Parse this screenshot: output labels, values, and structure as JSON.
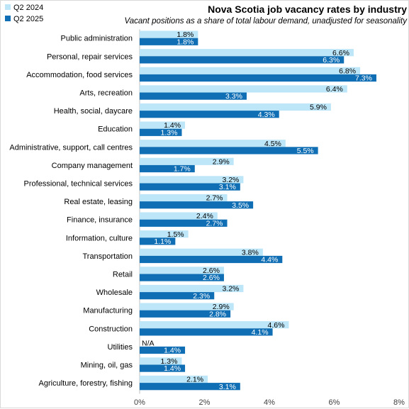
{
  "chart_data": {
    "type": "bar",
    "orientation": "horizontal",
    "title": "Nova Scotia job vacancy rates by industry",
    "subtitle": "Vacant positions as a share of total labour demand, unadjusted for seasonality",
    "xlim": [
      0,
      8
    ],
    "x_ticks": [
      "0%",
      "2%",
      "4%",
      "6%",
      "8%"
    ],
    "legend_position": "top-left",
    "grid": false,
    "categories": [
      "Public administration",
      "Personal, repair services",
      "Accommodation, food services",
      "Arts, recreation",
      "Health, social, daycare",
      "Education",
      "Administrative, support, call centres",
      "Company management",
      "Professional, technical services",
      "Real estate, leasing",
      "Finance, insurance",
      "Information, culture",
      "Transportation",
      "Retail",
      "Wholesale",
      "Manufacturing",
      "Construction",
      "Utilities",
      "Mining, oil, gas",
      "Agriculture, forestry, fishing"
    ],
    "series": [
      {
        "name": "Q2 2024",
        "color": "#bde6f8",
        "label_color": "#000000",
        "values": [
          1.8,
          6.6,
          6.8,
          6.4,
          5.9,
          1.4,
          4.5,
          2.9,
          3.2,
          2.7,
          2.4,
          1.5,
          3.8,
          2.6,
          3.2,
          2.9,
          4.6,
          null,
          1.3,
          2.1
        ],
        "labels": [
          "1.8%",
          "6.6%",
          "6.8%",
          "6.4%",
          "5.9%",
          "1.4%",
          "4.5%",
          "2.9%",
          "3.2%",
          "2.7%",
          "2.4%",
          "1.5%",
          "3.8%",
          "2.6%",
          "3.2%",
          "2.9%",
          "4.6%",
          "N/A",
          "1.3%",
          "2.1%"
        ]
      },
      {
        "name": "Q2 2025",
        "color": "#0f6eb4",
        "label_color": "#ffffff",
        "values": [
          1.8,
          6.3,
          7.3,
          3.3,
          4.3,
          1.3,
          5.5,
          1.7,
          3.1,
          3.5,
          2.7,
          1.1,
          4.4,
          2.6,
          2.3,
          2.8,
          4.1,
          1.4,
          1.4,
          3.1
        ],
        "labels": [
          "1.8%",
          "6.3%",
          "7.3%",
          "3.3%",
          "4.3%",
          "1.3%",
          "5.5%",
          "1.7%",
          "3.1%",
          "3.5%",
          "2.7%",
          "1.1%",
          "4.4%",
          "2.6%",
          "2.3%",
          "2.8%",
          "4.1%",
          "1.4%",
          "1.4%",
          "3.1%"
        ]
      }
    ]
  }
}
